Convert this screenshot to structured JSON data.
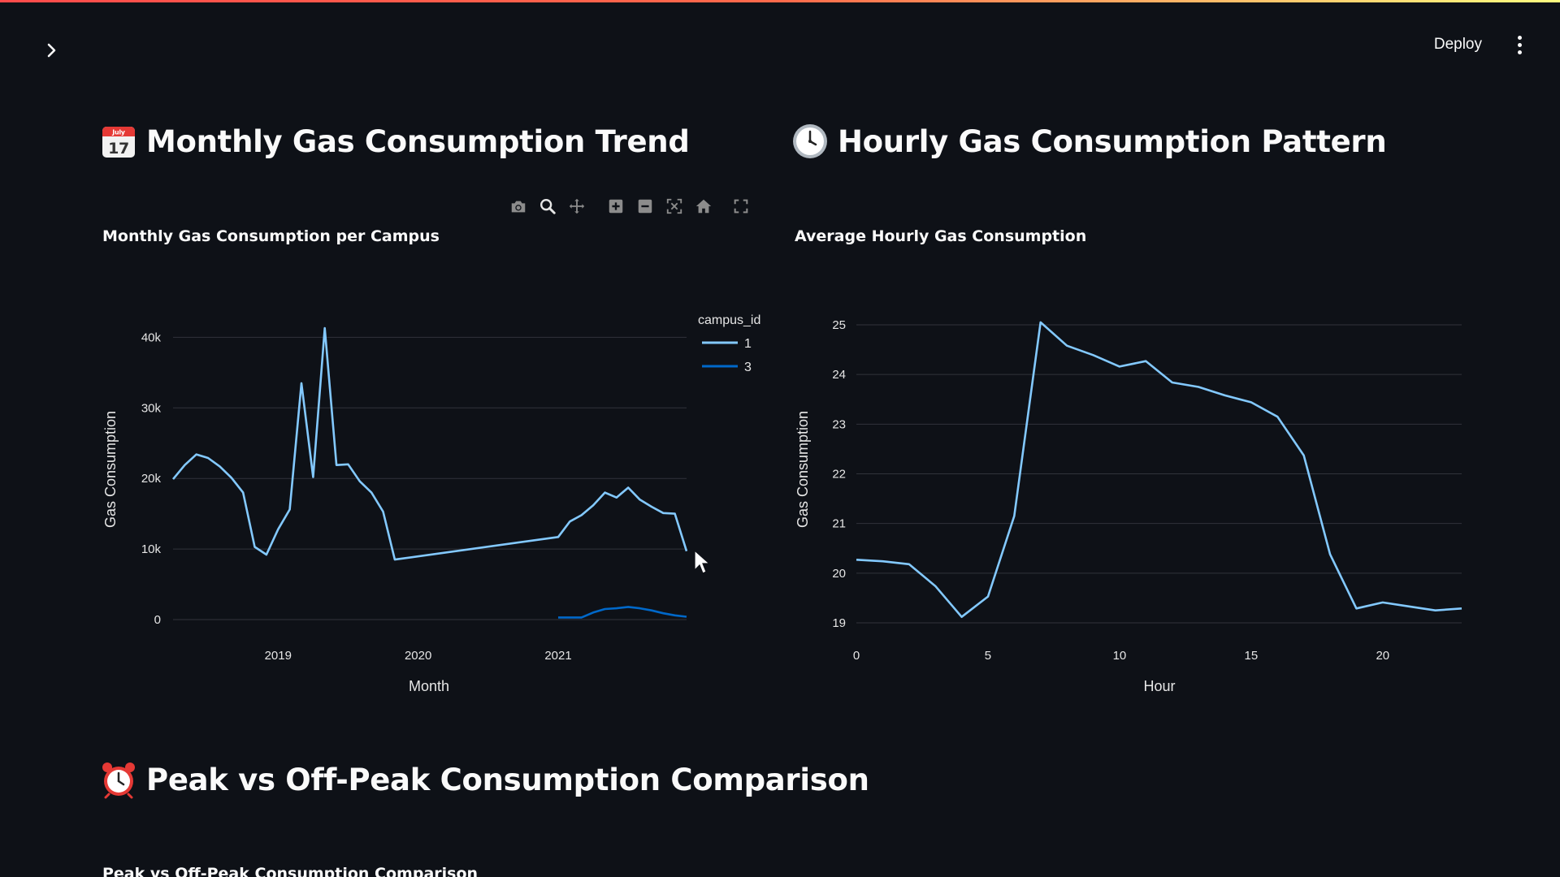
{
  "header": {
    "deploy_label": "Deploy",
    "sidebar_toggle_icon": "chevron-right-icon",
    "menu_icon": "vertical-ellipsis-icon",
    "stripe_colors": [
      "#ff4b4b",
      "#fffd80"
    ]
  },
  "sections": {
    "monthly_heading": "Monthly Gas Consumption Trend",
    "monthly_icon": "calendar-icon",
    "hourly_heading": "Hourly Gas Consumption Pattern",
    "hourly_icon": "clock-icon",
    "peak_heading": "Peak vs Off-Peak Consumption Comparison",
    "peak_icon": "alarm-clock-icon",
    "peak_chart_title": "Peak vs Off-Peak Consumption Comparison"
  },
  "modebar": [
    {
      "name": "download-plot-icon",
      "title": "Download plot as a png"
    },
    {
      "name": "zoom-icon",
      "title": "Zoom"
    },
    {
      "name": "pan-icon",
      "title": "Pan"
    },
    {
      "name": "zoom-in-icon",
      "title": "Zoom in"
    },
    {
      "name": "zoom-out-icon",
      "title": "Zoom out"
    },
    {
      "name": "autoscale-icon",
      "title": "Autoscale"
    },
    {
      "name": "reset-axes-icon",
      "title": "Reset axes"
    },
    {
      "name": "fullscreen-icon",
      "title": "Fullscreen"
    }
  ],
  "colors": {
    "background": "#0e1117",
    "series_light_blue": "#83c9ff",
    "series_dark_blue": "#0068c9",
    "grid": "#31333b"
  },
  "chart_data": [
    {
      "type": "line",
      "title": "Monthly Gas Consumption per Campus",
      "xlabel": "Month",
      "ylabel": "Gas Consumption",
      "xlim": [
        "2018-04",
        "2021-12"
      ],
      "ylim": [
        0,
        42000
      ],
      "x_ticks": [
        "2019",
        "2020",
        "2021"
      ],
      "y_ticks": [
        "0",
        "10k",
        "20k",
        "30k",
        "40k"
      ],
      "legend_title": "campus_id",
      "legend_position": "top-right",
      "grid": true,
      "series": [
        {
          "name": "1",
          "color": "#83c9ff",
          "points": [
            [
              "2018-04",
              19900
            ],
            [
              "2018-05",
              21900
            ],
            [
              "2018-06",
              23400
            ],
            [
              "2018-07",
              22900
            ],
            [
              "2018-08",
              21700
            ],
            [
              "2018-09",
              20100
            ],
            [
              "2018-10",
              18000
            ],
            [
              "2018-11",
              10300
            ],
            [
              "2018-12",
              9200
            ],
            [
              "2019-01",
              12800
            ],
            [
              "2019-02",
              15600
            ],
            [
              "2019-03",
              33500
            ],
            [
              "2019-04",
              20200
            ],
            [
              "2019-05",
              41300
            ],
            [
              "2019-06",
              21900
            ],
            [
              "2019-07",
              22000
            ],
            [
              "2019-08",
              19600
            ],
            [
              "2019-09",
              18000
            ],
            [
              "2019-10",
              15300
            ],
            [
              "2019-11",
              8500
            ],
            [
              "2021-01",
              11700
            ],
            [
              "2021-02",
              13900
            ],
            [
              "2021-03",
              14800
            ],
            [
              "2021-04",
              16200
            ],
            [
              "2021-05",
              18000
            ],
            [
              "2021-06",
              17300
            ],
            [
              "2021-07",
              18700
            ],
            [
              "2021-08",
              17000
            ],
            [
              "2021-09",
              16000
            ],
            [
              "2021-10",
              15100
            ],
            [
              "2021-11",
              15000
            ],
            [
              "2021-12",
              9700
            ]
          ]
        },
        {
          "name": "3",
          "color": "#0068c9",
          "points": [
            [
              "2021-01",
              300
            ],
            [
              "2021-02",
              300
            ],
            [
              "2021-03",
              300
            ],
            [
              "2021-04",
              1000
            ],
            [
              "2021-05",
              1500
            ],
            [
              "2021-06",
              1600
            ],
            [
              "2021-07",
              1800
            ],
            [
              "2021-08",
              1600
            ],
            [
              "2021-09",
              1300
            ],
            [
              "2021-10",
              900
            ],
            [
              "2021-11",
              600
            ],
            [
              "2021-12",
              400
            ]
          ]
        }
      ]
    },
    {
      "type": "line",
      "title": "Average Hourly Gas Consumption",
      "xlabel": "Hour",
      "ylabel": "Gas Consumption",
      "xlim": [
        0,
        23
      ],
      "ylim": [
        19,
        25
      ],
      "x_ticks": [
        "0",
        "5",
        "10",
        "15",
        "20"
      ],
      "y_ticks": [
        "19",
        "20",
        "21",
        "22",
        "23",
        "24",
        "25"
      ],
      "grid": true,
      "series": [
        {
          "color": "#83c9ff",
          "x": [
            0,
            1,
            2,
            3,
            4,
            5,
            6,
            7,
            8,
            9,
            10,
            11,
            12,
            13,
            14,
            15,
            16,
            17,
            18,
            19,
            20,
            21,
            22,
            23
          ],
          "values": [
            20.27,
            20.24,
            20.18,
            19.74,
            19.12,
            19.53,
            21.15,
            25.05,
            24.58,
            24.39,
            24.16,
            24.27,
            23.84,
            23.75,
            23.58,
            23.44,
            23.15,
            22.37,
            20.38,
            19.29,
            19.41,
            19.33,
            19.25,
            19.29
          ]
        }
      ]
    }
  ]
}
